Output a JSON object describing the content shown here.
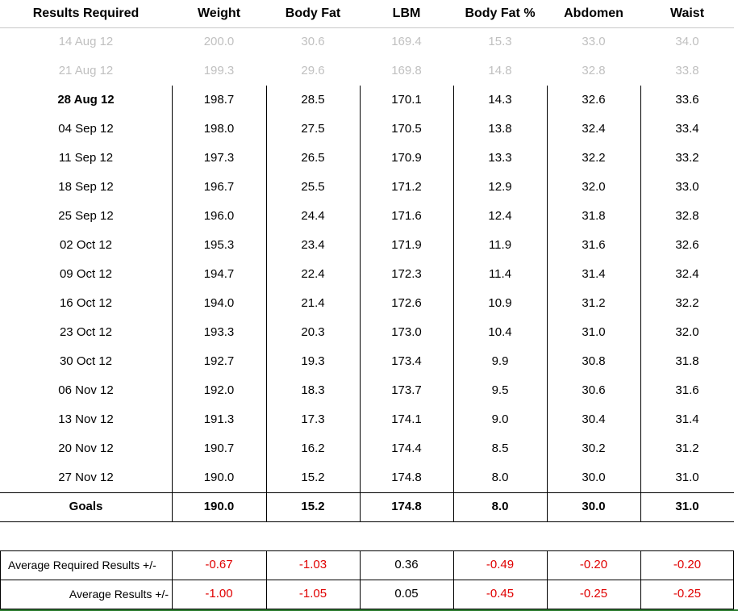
{
  "headers": [
    "Results Required",
    "Weight",
    "Body Fat",
    "LBM",
    "Body Fat %",
    "Abdomen",
    "Waist"
  ],
  "rows": [
    {
      "date": "14 Aug 12",
      "weight": "200.0",
      "bodyfat": "30.6",
      "lbm": "169.4",
      "bfpct": "15.3",
      "abdomen": "33.0",
      "waist": "34.0",
      "style": "greyed"
    },
    {
      "date": "21 Aug 12",
      "weight": "199.3",
      "bodyfat": "29.6",
      "lbm": "169.8",
      "bfpct": "14.8",
      "abdomen": "32.8",
      "waist": "33.8",
      "style": "greyed"
    },
    {
      "date": "28 Aug 12",
      "weight": "198.7",
      "bodyfat": "28.5",
      "lbm": "170.1",
      "bfpct": "14.3",
      "abdomen": "32.6",
      "waist": "33.6",
      "style": "current"
    },
    {
      "date": "04 Sep 12",
      "weight": "198.0",
      "bodyfat": "27.5",
      "lbm": "170.5",
      "bfpct": "13.8",
      "abdomen": "32.4",
      "waist": "33.4",
      "style": ""
    },
    {
      "date": "11 Sep 12",
      "weight": "197.3",
      "bodyfat": "26.5",
      "lbm": "170.9",
      "bfpct": "13.3",
      "abdomen": "32.2",
      "waist": "33.2",
      "style": ""
    },
    {
      "date": "18 Sep 12",
      "weight": "196.7",
      "bodyfat": "25.5",
      "lbm": "171.2",
      "bfpct": "12.9",
      "abdomen": "32.0",
      "waist": "33.0",
      "style": ""
    },
    {
      "date": "25 Sep 12",
      "weight": "196.0",
      "bodyfat": "24.4",
      "lbm": "171.6",
      "bfpct": "12.4",
      "abdomen": "31.8",
      "waist": "32.8",
      "style": ""
    },
    {
      "date": "02 Oct 12",
      "weight": "195.3",
      "bodyfat": "23.4",
      "lbm": "171.9",
      "bfpct": "11.9",
      "abdomen": "31.6",
      "waist": "32.6",
      "style": ""
    },
    {
      "date": "09 Oct 12",
      "weight": "194.7",
      "bodyfat": "22.4",
      "lbm": "172.3",
      "bfpct": "11.4",
      "abdomen": "31.4",
      "waist": "32.4",
      "style": ""
    },
    {
      "date": "16 Oct 12",
      "weight": "194.0",
      "bodyfat": "21.4",
      "lbm": "172.6",
      "bfpct": "10.9",
      "abdomen": "31.2",
      "waist": "32.2",
      "style": ""
    },
    {
      "date": "23 Oct 12",
      "weight": "193.3",
      "bodyfat": "20.3",
      "lbm": "173.0",
      "bfpct": "10.4",
      "abdomen": "31.0",
      "waist": "32.0",
      "style": ""
    },
    {
      "date": "30 Oct 12",
      "weight": "192.7",
      "bodyfat": "19.3",
      "lbm": "173.4",
      "bfpct": "9.9",
      "abdomen": "30.8",
      "waist": "31.8",
      "style": ""
    },
    {
      "date": "06 Nov 12",
      "weight": "192.0",
      "bodyfat": "18.3",
      "lbm": "173.7",
      "bfpct": "9.5",
      "abdomen": "30.6",
      "waist": "31.6",
      "style": ""
    },
    {
      "date": "13 Nov 12",
      "weight": "191.3",
      "bodyfat": "17.3",
      "lbm": "174.1",
      "bfpct": "9.0",
      "abdomen": "30.4",
      "waist": "31.4",
      "style": ""
    },
    {
      "date": "20 Nov 12",
      "weight": "190.7",
      "bodyfat": "16.2",
      "lbm": "174.4",
      "bfpct": "8.5",
      "abdomen": "30.2",
      "waist": "31.2",
      "style": ""
    },
    {
      "date": "27 Nov 12",
      "weight": "190.0",
      "bodyfat": "15.2",
      "lbm": "174.8",
      "bfpct": "8.0",
      "abdomen": "30.0",
      "waist": "31.0",
      "style": ""
    }
  ],
  "goals": {
    "label": "Goals",
    "weight": "190.0",
    "bodyfat": "15.2",
    "lbm": "174.8",
    "bfpct": "8.0",
    "abdomen": "30.0",
    "waist": "31.0"
  },
  "summary": [
    {
      "label": "Average Required Results +/-",
      "align": "left",
      "values": [
        {
          "v": "-0.67",
          "neg": true
        },
        {
          "v": "-1.03",
          "neg": true
        },
        {
          "v": "0.36",
          "neg": false
        },
        {
          "v": "-0.49",
          "neg": true
        },
        {
          "v": "-0.20",
          "neg": true
        },
        {
          "v": "-0.20",
          "neg": true
        }
      ]
    },
    {
      "label": "Average Results +/-",
      "align": "right",
      "values": [
        {
          "v": "-1.00",
          "neg": true
        },
        {
          "v": "-1.05",
          "neg": true
        },
        {
          "v": "0.05",
          "neg": false
        },
        {
          "v": "-0.45",
          "neg": true
        },
        {
          "v": "-0.25",
          "neg": true
        },
        {
          "v": "-0.25",
          "neg": true
        }
      ]
    }
  ],
  "colors": {
    "negative": "#e00000",
    "greyed": "#c0c0c0",
    "gridline": "#000000",
    "bottom_accent": "#2e7d32",
    "header_rule": "#c8c8c8"
  }
}
